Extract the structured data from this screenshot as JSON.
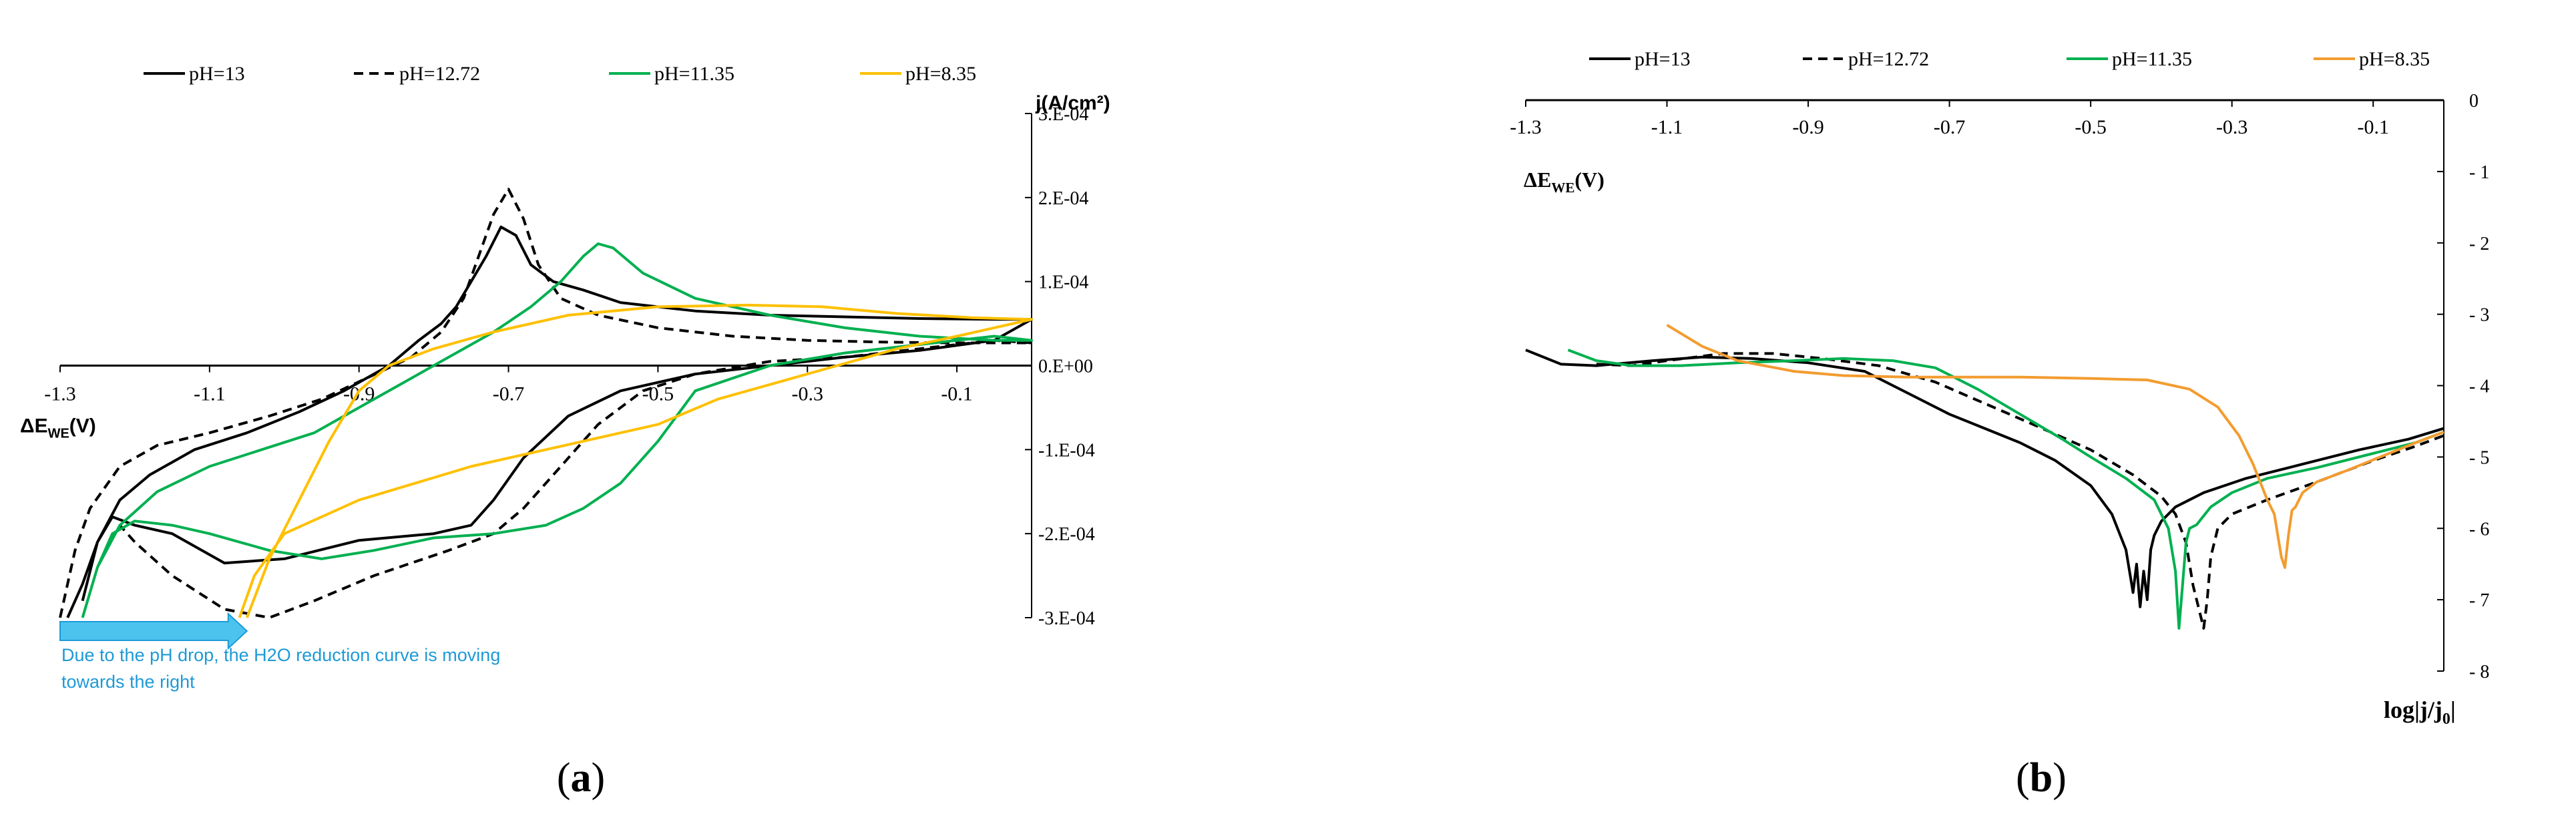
{
  "chart_data": [
    {
      "panel_label": "(a)",
      "panel_letter": "a",
      "type": "line",
      "title": "",
      "xlabel": "ΔE",
      "xlabel_sub": "WE",
      "xlabel_unit": "(V)",
      "ylabel": "j(A/cm²)",
      "xlim": [
        -1.3,
        0.0
      ],
      "ylim": [
        -0.0003,
        0.0003
      ],
      "x_ticks": [
        "-1.3",
        "-1.1",
        "-0.9",
        "-0.7",
        "-0.5",
        "-0.3",
        "-0.1"
      ],
      "y_ticks": [
        "3.E-04",
        "2.E-04",
        "1.E-04",
        "0.E+00",
        "-1.E-04",
        "-2.E-04",
        "-3.E-04"
      ],
      "legend_position": "top",
      "annotation": {
        "lines": [
          "Due to the pH drop, the H2O reduction curve is moving",
          "towards the right"
        ],
        "arrow_from_x": -1.3,
        "arrow_to_x": -1.05
      },
      "series": [
        {
          "name": "pH=13",
          "color": "#000000",
          "dash": "solid",
          "x": [
            -1.29,
            -1.27,
            -1.25,
            -1.22,
            -1.18,
            -1.12,
            -1.05,
            -0.98,
            -0.92,
            -0.86,
            -0.82,
            -0.79,
            -0.77,
            -0.75,
            -0.73,
            -0.71,
            -0.69,
            -0.67,
            -0.64,
            -0.6,
            -0.55,
            -0.45,
            -0.35,
            -0.25,
            -0.15,
            -0.05,
            0.0,
            -0.05,
            -0.15,
            -0.25,
            -0.35,
            -0.45,
            -0.55,
            -0.62,
            -0.68,
            -0.72,
            -0.75,
            -0.8,
            -0.9,
            -1.0,
            -1.08,
            -1.15,
            -1.2,
            -1.23,
            -1.25,
            -1.27
          ],
          "y": [
            -0.0003,
            -0.00026,
            -0.00021,
            -0.00016,
            -0.00013,
            -0.0001,
            -8e-05,
            -5.5e-05,
            -3e-05,
            0.0,
            3e-05,
            5e-05,
            7e-05,
            0.0001,
            0.00013,
            0.000165,
            0.000155,
            0.00012,
            0.0001,
            9e-05,
            7.5e-05,
            6.5e-05,
            6e-05,
            5.8e-05,
            5.6e-05,
            5.5e-05,
            5.5e-05,
            3e-05,
            1.8e-05,
            1e-05,
            0.0,
            -1e-05,
            -3e-05,
            -6e-05,
            -0.00011,
            -0.00016,
            -0.00019,
            -0.0002,
            -0.000208,
            -0.00023,
            -0.000235,
            -0.0002,
            -0.00019,
            -0.00018,
            -0.00021,
            -0.00028
          ]
        },
        {
          "name": "pH=12.72",
          "color": "#000000",
          "dash": "dashed",
          "x": [
            -1.3,
            -1.28,
            -1.26,
            -1.22,
            -1.17,
            -1.1,
            -1.02,
            -0.95,
            -0.89,
            -0.83,
            -0.79,
            -0.76,
            -0.74,
            -0.72,
            -0.7,
            -0.68,
            -0.66,
            -0.63,
            -0.58,
            -0.5,
            -0.4,
            -0.3,
            -0.2,
            -0.1,
            0.0,
            -0.05,
            -0.15,
            -0.25,
            -0.35,
            -0.45,
            -0.52,
            -0.58,
            -0.63,
            -0.68,
            -0.72,
            -0.78,
            -0.88,
            -0.96,
            -1.02,
            -1.08,
            -1.15,
            -1.2,
            -1.22
          ],
          "y": [
            -0.0003,
            -0.00022,
            -0.00017,
            -0.00012,
            -9.5e-05,
            -8e-05,
            -6e-05,
            -4e-05,
            -1.5e-05,
            1e-05,
            4e-05,
            8e-05,
            0.00013,
            0.00018,
            0.00021,
            0.000175,
            0.00012,
            8e-05,
            6e-05,
            4.5e-05,
            3.5e-05,
            3e-05,
            2.8e-05,
            2.7e-05,
            2.7e-05,
            3e-05,
            2e-05,
            1e-05,
            5e-06,
            -1e-05,
            -3e-05,
            -7e-05,
            -0.00012,
            -0.00017,
            -0.0002,
            -0.00022,
            -0.00025,
            -0.00028,
            -0.0003,
            -0.00029,
            -0.00025,
            -0.00021,
            -0.00019
          ]
        },
        {
          "name": "pH=11.35",
          "color": "#00b050",
          "dash": "solid",
          "x": [
            -1.27,
            -1.25,
            -1.22,
            -1.17,
            -1.1,
            -1.03,
            -0.96,
            -0.9,
            -0.84,
            -0.78,
            -0.72,
            -0.67,
            -0.63,
            -0.6,
            -0.58,
            -0.56,
            -0.52,
            -0.45,
            -0.35,
            -0.25,
            -0.15,
            -0.05,
            0.0,
            -0.05,
            -0.15,
            -0.25,
            -0.35,
            -0.45,
            -0.5,
            -0.55,
            -0.6,
            -0.65,
            -0.72,
            -0.8,
            -0.88,
            -0.95,
            -1.02,
            -1.1,
            -1.15,
            -1.2,
            -1.23,
            -1.25,
            -1.27
          ],
          "y": [
            -0.0003,
            -0.00024,
            -0.00019,
            -0.00015,
            -0.00012,
            -0.0001,
            -8e-05,
            -5e-05,
            -2e-05,
            1e-05,
            4e-05,
            7e-05,
            0.0001,
            0.00013,
            0.000145,
            0.00014,
            0.00011,
            8e-05,
            6e-05,
            4.5e-05,
            3.5e-05,
            3e-05,
            3e-05,
            3.5e-05,
            2.5e-05,
            1.5e-05,
            0.0,
            -3e-05,
            -9e-05,
            -0.00014,
            -0.00017,
            -0.00019,
            -0.0002,
            -0.000205,
            -0.00022,
            -0.00023,
            -0.00022,
            -0.0002,
            -0.00019,
            -0.000185,
            -0.0002,
            -0.00024,
            -0.0003
          ]
        },
        {
          "name": "pH=8.35",
          "color": "#ffc000",
          "dash": "solid",
          "x": [
            -1.05,
            -1.02,
            -0.98,
            -0.94,
            -0.9,
            -0.86,
            -0.8,
            -0.72,
            -0.62,
            -0.5,
            -0.38,
            -0.28,
            -0.18,
            -0.08,
            0.0,
            -0.05,
            -0.1,
            -0.18,
            -0.26,
            -0.34,
            -0.42,
            -0.5,
            -0.6,
            -0.75,
            -0.9,
            -1.0,
            -1.04,
            -1.06
          ],
          "y": [
            -0.0003,
            -0.00023,
            -0.00016,
            -9e-05,
            -3e-05,
            0.0,
            2e-05,
            4e-05,
            6e-05,
            7e-05,
            7.2e-05,
            7e-05,
            6.2e-05,
            5.7e-05,
            5.5e-05,
            4.5e-05,
            3.5e-05,
            2e-05,
            0.0,
            -2e-05,
            -4e-05,
            -7e-05,
            -9e-05,
            -0.00012,
            -0.00016,
            -0.0002,
            -0.00025,
            -0.0003
          ]
        }
      ]
    },
    {
      "panel_label": "(b)",
      "panel_letter": "b",
      "type": "line",
      "title": "",
      "xlabel": "ΔE",
      "xlabel_sub": "WE",
      "xlabel_unit": "(V)",
      "ylabel": "log|j/j",
      "ylabel_sub": "0",
      "ylabel_end": "|",
      "xlim": [
        -1.3,
        0.0
      ],
      "ylim": [
        -8,
        0
      ],
      "x_ticks": [
        "-1.3",
        "-1.1",
        "-0.9",
        "-0.7",
        "-0.5",
        "-0.3",
        "-0.1"
      ],
      "y_ticks": [
        "0",
        "- 1",
        "- 2",
        "- 3",
        "- 4",
        "- 5",
        "- 6",
        "- 7",
        "- 8"
      ],
      "legend_position": "top",
      "series": [
        {
          "name": "pH=13",
          "color": "#000000",
          "dash": "solid",
          "x": [
            -1.3,
            -1.25,
            -1.2,
            -1.12,
            -1.05,
            -0.98,
            -0.9,
            -0.82,
            -0.75,
            -0.7,
            -0.65,
            -0.6,
            -0.55,
            -0.5,
            -0.47,
            -0.45,
            -0.44,
            -0.435,
            -0.43,
            -0.425,
            -0.42,
            -0.415,
            -0.41,
            -0.4,
            -0.38,
            -0.34,
            -0.28,
            -0.2,
            -0.12,
            -0.05,
            0.0
          ],
          "y": [
            -3.5,
            -3.7,
            -3.72,
            -3.65,
            -3.6,
            -3.62,
            -3.68,
            -3.8,
            -4.15,
            -4.4,
            -4.6,
            -4.8,
            -5.05,
            -5.4,
            -5.8,
            -6.3,
            -6.9,
            -6.5,
            -7.1,
            -6.6,
            -7.0,
            -6.3,
            -6.1,
            -5.9,
            -5.7,
            -5.5,
            -5.3,
            -5.1,
            -4.9,
            -4.75,
            -4.6
          ]
        },
        {
          "name": "pH=12.72",
          "color": "#000000",
          "dash": "dashed",
          "x": [
            -1.2,
            -1.15,
            -1.1,
            -1.02,
            -0.95,
            -0.88,
            -0.8,
            -0.72,
            -0.65,
            -0.58,
            -0.5,
            -0.44,
            -0.4,
            -0.38,
            -0.365,
            -0.355,
            -0.345,
            -0.34,
            -0.335,
            -0.33,
            -0.32,
            -0.3,
            -0.25,
            -0.18,
            -0.1,
            -0.04,
            0.0
          ],
          "y": [
            -3.7,
            -3.72,
            -3.65,
            -3.55,
            -3.55,
            -3.62,
            -3.72,
            -3.95,
            -4.25,
            -4.55,
            -4.9,
            -5.25,
            -5.55,
            -5.8,
            -6.2,
            -6.8,
            -7.2,
            -7.4,
            -7.0,
            -6.4,
            -6.0,
            -5.8,
            -5.6,
            -5.35,
            -5.05,
            -4.85,
            -4.7
          ]
        },
        {
          "name": "pH=11.35",
          "color": "#00b050",
          "dash": "solid",
          "x": [
            -1.24,
            -1.2,
            -1.15,
            -1.08,
            -1.0,
            -0.92,
            -0.85,
            -0.78,
            -0.72,
            -0.66,
            -0.6,
            -0.54,
            -0.5,
            -0.45,
            -0.41,
            -0.39,
            -0.38,
            -0.375,
            -0.37,
            -0.365,
            -0.36,
            -0.35,
            -0.33,
            -0.3,
            -0.25,
            -0.18,
            -0.1,
            -0.04,
            0.0
          ],
          "y": [
            -3.5,
            -3.65,
            -3.72,
            -3.72,
            -3.68,
            -3.65,
            -3.62,
            -3.65,
            -3.75,
            -4.05,
            -4.4,
            -4.75,
            -5.0,
            -5.3,
            -5.6,
            -6.0,
            -6.6,
            -7.4,
            -6.8,
            -6.2,
            -6.0,
            -5.95,
            -5.7,
            -5.5,
            -5.3,
            -5.15,
            -4.95,
            -4.8,
            -4.65
          ]
        },
        {
          "name": "pH=8.35",
          "color": "#f39c30",
          "dash": "solid",
          "x": [
            -1.1,
            -1.05,
            -1.0,
            -0.92,
            -0.85,
            -0.76,
            -0.68,
            -0.6,
            -0.5,
            -0.42,
            -0.36,
            -0.32,
            -0.29,
            -0.27,
            -0.25,
            -0.24,
            -0.235,
            -0.23,
            -0.225,
            -0.22,
            -0.215,
            -0.21,
            -0.2,
            -0.18,
            -0.14,
            -0.09,
            -0.04,
            0.0
          ],
          "y": [
            -3.15,
            -3.45,
            -3.65,
            -3.8,
            -3.86,
            -3.88,
            -3.88,
            -3.88,
            -3.9,
            -3.92,
            -4.05,
            -4.3,
            -4.7,
            -5.1,
            -5.6,
            -5.8,
            -6.1,
            -6.4,
            -6.55,
            -6.1,
            -5.75,
            -5.7,
            -5.5,
            -5.35,
            -5.2,
            -5.0,
            -4.8,
            -4.65
          ]
        }
      ]
    }
  ]
}
